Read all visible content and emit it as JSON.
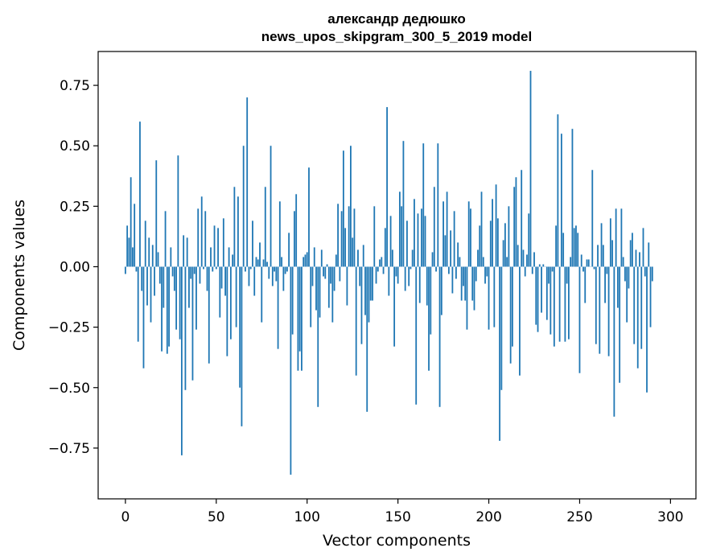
{
  "chart_data": {
    "type": "bar",
    "title": "александр дедюшко",
    "subtitle": "news_upos_skipgram_300_5_2019 model",
    "xlabel": "Vector components",
    "ylabel": "Components values",
    "xlim": [
      -15,
      314
    ],
    "ylim": [
      -0.96,
      0.89
    ],
    "xticks": [
      0,
      50,
      100,
      150,
      200,
      250,
      300
    ],
    "xtick_labels": [
      "0",
      "50",
      "100",
      "150",
      "200",
      "250",
      "300"
    ],
    "yticks": [
      0.75,
      0.5,
      0.25,
      0.0,
      -0.25,
      -0.5,
      -0.75
    ],
    "ytick_labels": [
      "0.75",
      "0.50",
      "0.25",
      "0.00",
      "−0.25",
      "−0.50",
      "−0.75"
    ],
    "grid": false,
    "bar_color": "#1f77b4",
    "x_start": 0,
    "values": [
      -0.03,
      0.17,
      0.12,
      0.37,
      0.08,
      0.26,
      -0.02,
      -0.31,
      0.6,
      -0.1,
      -0.42,
      0.19,
      -0.16,
      0.12,
      -0.23,
      0.09,
      -0.12,
      0.44,
      0.06,
      -0.07,
      -0.35,
      -0.17,
      0.23,
      -0.36,
      -0.33,
      0.08,
      -0.04,
      -0.1,
      -0.26,
      0.46,
      -0.3,
      -0.78,
      0.13,
      -0.51,
      0.12,
      -0.17,
      -0.05,
      -0.47,
      -0.03,
      -0.26,
      0.24,
      -0.07,
      0.29,
      -0.01,
      0.23,
      -0.1,
      -0.4,
      0.08,
      -0.02,
      0.17,
      -0.01,
      0.16,
      -0.21,
      -0.09,
      0.2,
      -0.12,
      -0.37,
      0.08,
      -0.3,
      0.05,
      0.33,
      -0.25,
      0.29,
      -0.5,
      -0.66,
      0.5,
      -0.02,
      0.7,
      -0.08,
      -0.01,
      0.19,
      -0.12,
      0.04,
      0.03,
      0.1,
      -0.23,
      0.03,
      0.33,
      0.02,
      -0.05,
      0.5,
      -0.08,
      -0.02,
      -0.06,
      -0.34,
      0.27,
      0.04,
      -0.1,
      -0.03,
      -0.02,
      0.14,
      -0.86,
      -0.28,
      0.23,
      0.3,
      -0.43,
      -0.35,
      -0.43,
      0.04,
      0.05,
      0.06,
      0.41,
      -0.25,
      -0.08,
      0.08,
      -0.18,
      -0.58,
      -0.21,
      0.07,
      -0.04,
      -0.05,
      0.01,
      -0.17,
      -0.07,
      -0.23,
      -0.1,
      0.05,
      0.26,
      -0.06,
      0.23,
      0.48,
      0.16,
      -0.16,
      0.25,
      0.5,
      0.12,
      0.24,
      -0.45,
      0.07,
      -0.08,
      -0.32,
      0.09,
      -0.2,
      -0.6,
      -0.23,
      -0.14,
      -0.14,
      0.25,
      -0.07,
      -0.02,
      0.03,
      0.04,
      -0.03,
      0.16,
      0.66,
      -0.12,
      0.21,
      0.07,
      -0.33,
      -0.04,
      -0.07,
      0.31,
      0.25,
      0.52,
      -0.1,
      0.19,
      -0.08,
      -0.01,
      0.07,
      0.28,
      -0.57,
      0.22,
      -0.15,
      0.24,
      0.51,
      0.21,
      -0.16,
      -0.43,
      -0.28,
      0.06,
      0.33,
      -0.02,
      0.51,
      -0.58,
      -0.2,
      0.27,
      0.13,
      0.31,
      -0.03,
      0.15,
      -0.11,
      0.23,
      -0.05,
      0.1,
      0.04,
      -0.14,
      -0.08,
      -0.14,
      -0.26,
      0.27,
      0.24,
      -0.14,
      -0.18,
      -0.06,
      0.07,
      0.17,
      0.31,
      0.04,
      -0.07,
      -0.04,
      -0.26,
      0.19,
      0.28,
      -0.25,
      0.34,
      0.2,
      -0.72,
      -0.51,
      0.11,
      0.18,
      0.04,
      0.25,
      -0.4,
      -0.33,
      0.33,
      0.37,
      0.09,
      -0.45,
      0.4,
      0.07,
      -0.04,
      0.05,
      0.22,
      0.81,
      -0.03,
      0.06,
      -0.24,
      -0.27,
      0.01,
      -0.19,
      0.01,
      0.0,
      -0.22,
      -0.07,
      -0.28,
      -0.02,
      -0.33,
      0.17,
      0.63,
      -0.31,
      0.55,
      0.14,
      -0.31,
      -0.07,
      -0.3,
      0.04,
      0.57,
      0.16,
      0.17,
      0.14,
      -0.44,
      0.05,
      -0.02,
      -0.15,
      0.03,
      0.03,
      0.0,
      0.4,
      -0.01,
      -0.32,
      0.09,
      -0.36,
      0.18,
      0.09,
      -0.15,
      -0.03,
      -0.37,
      0.2,
      0.11,
      -0.62,
      0.24,
      -0.17,
      -0.48,
      0.24,
      0.04,
      -0.06,
      -0.23,
      -0.09,
      0.11,
      0.14,
      -0.32,
      0.07,
      -0.42,
      0.06,
      -0.34,
      0.16,
      -0.04,
      -0.52,
      0.1,
      -0.25,
      -0.06
    ]
  }
}
